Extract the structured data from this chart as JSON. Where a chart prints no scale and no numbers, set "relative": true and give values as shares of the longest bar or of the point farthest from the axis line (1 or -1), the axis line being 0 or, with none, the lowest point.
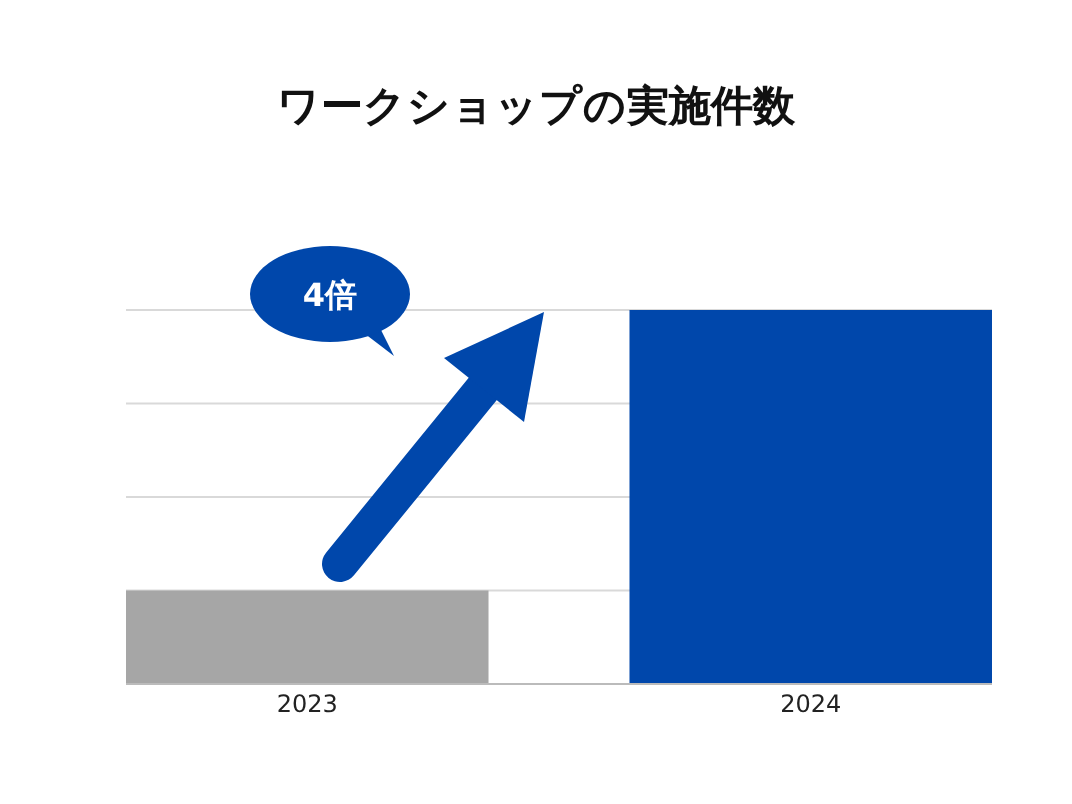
{
  "chart_data": {
    "type": "bar",
    "title": "ワークショップの実施件数",
    "categories": [
      "2023",
      "2024"
    ],
    "values": [
      0.25,
      1
    ],
    "colors": [
      "#a6a6a6",
      "#0047ab"
    ],
    "relative": true,
    "grid": true,
    "annotations": [
      "4倍"
    ]
  }
}
